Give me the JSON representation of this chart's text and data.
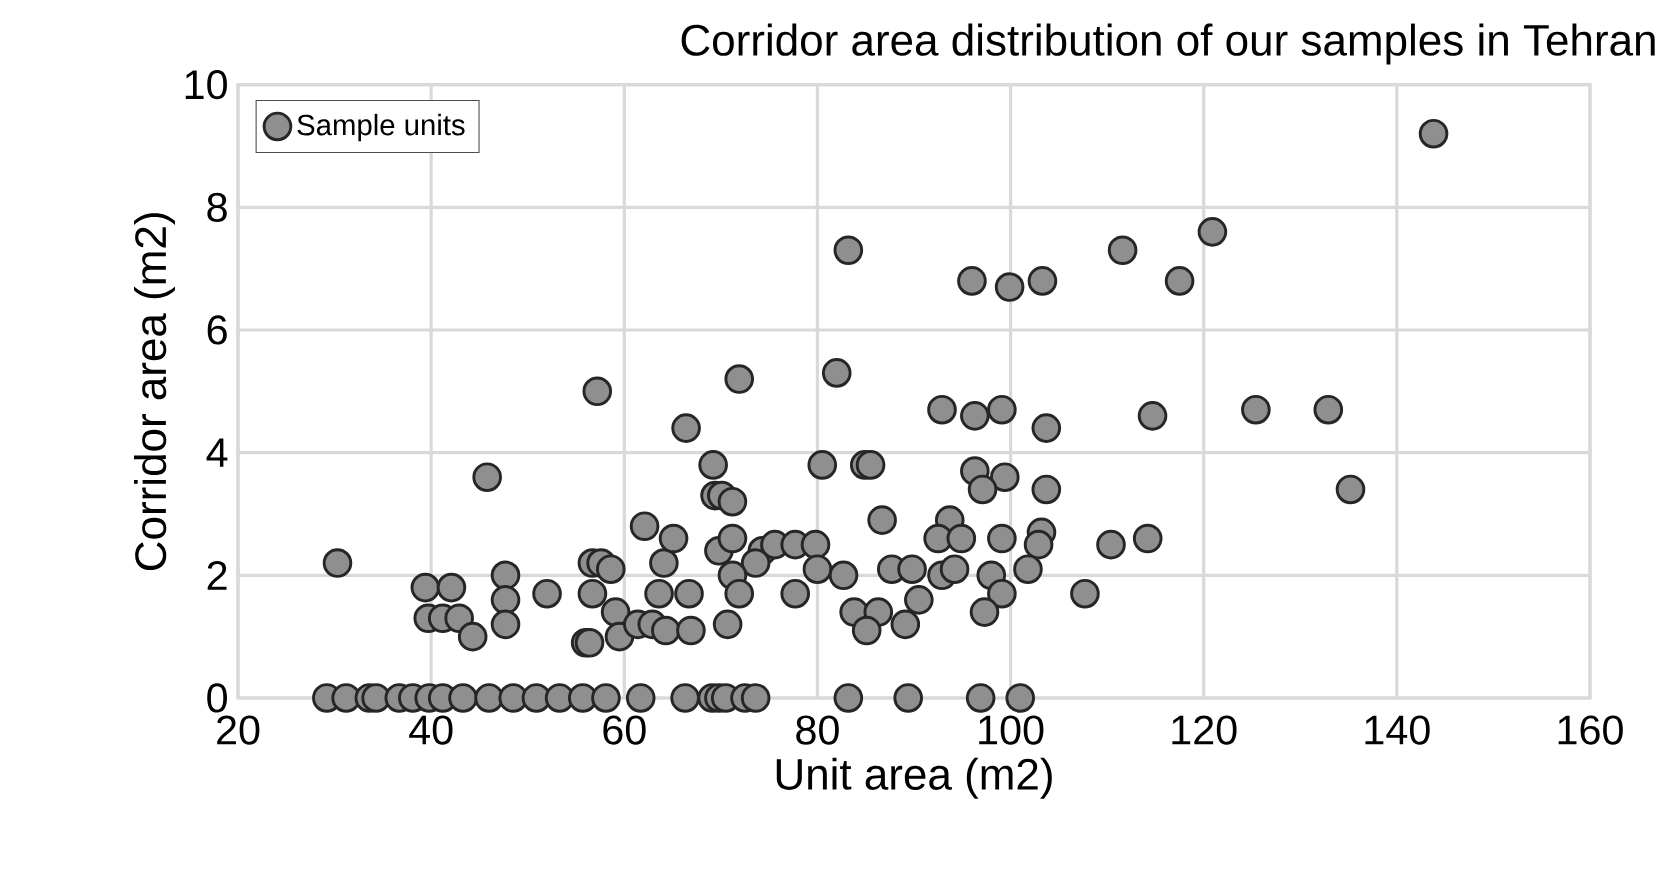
{
  "chart_data": {
    "type": "scatter",
    "title": "Corridor area distribution of our samples in Tehran",
    "xlabel": "Unit area (m2)",
    "ylabel": "Corridor area (m2)",
    "xlim": [
      20,
      160
    ],
    "xticks": [
      20,
      40,
      60,
      80,
      100,
      120,
      140,
      160
    ],
    "ylim": [
      0,
      10
    ],
    "yticks": [
      0,
      2,
      4,
      6,
      8,
      10
    ],
    "grid": true,
    "legend": "top left",
    "series": [
      {
        "name": "Sample units",
        "color": "#8f8f8f",
        "x": [
          29.2,
          31.2,
          33.6,
          34.3,
          36.7,
          38.1,
          39.8,
          41.2,
          43.3,
          46.0,
          48.5,
          50.9,
          53.3,
          55.7,
          58.1,
          61.7,
          66.3,
          69.1,
          69.8,
          70.5,
          72.5,
          73.6,
          83.2,
          89.4,
          96.9,
          101.0,
          57.2,
          45.8,
          30.3,
          39.4,
          42.1,
          39.7,
          41.2,
          42.9,
          44.3,
          47.7,
          47.7,
          47.7,
          52.0,
          56.7,
          57.6,
          58.6,
          56.7,
          56.0,
          56.4,
          59.1,
          59.5,
          61.4,
          62.1,
          64.1,
          63.6,
          62.9,
          64.3,
          66.4,
          71.9,
          82.0,
          92.9,
          96.3,
          99.1,
          103.7,
          69.2,
          80.5,
          84.9,
          85.5,
          96.3,
          99.4,
          97.1,
          103.7,
          69.4,
          70.1,
          71.2,
          86.7,
          93.7,
          92.5,
          94.9,
          99.1,
          103.2,
          102.9,
          110.4,
          65.1,
          69.8,
          71.2,
          74.3,
          75.6,
          77.7,
          79.8,
          73.6,
          80.0,
          71.2,
          71.9,
          66.7,
          77.7,
          82.7,
          87.7,
          89.8,
          92.9,
          94.2,
          98.0,
          101.8,
          99.1,
          107.7,
          90.5,
          83.8,
          86.3,
          85.1,
          89.1,
          97.3,
          70.7,
          66.9,
          143.8,
          120.9,
          111.6,
          117.5,
          114.7,
          125.4,
          132.9,
          135.2,
          114.2,
          83.2,
          96.0,
          99.9,
          103.3
        ],
        "values": [
          0,
          0,
          0,
          0,
          0,
          0,
          0,
          0,
          0,
          0,
          0,
          0,
          0,
          0,
          0,
          0,
          0,
          0,
          0,
          0,
          0,
          0,
          0,
          0,
          0,
          0,
          5.0,
          3.6,
          2.2,
          1.8,
          1.8,
          1.3,
          1.3,
          1.3,
          1.0,
          2.0,
          1.6,
          1.2,
          1.7,
          2.2,
          2.2,
          2.1,
          1.7,
          0.9,
          0.9,
          1.4,
          1.0,
          1.2,
          2.8,
          2.2,
          1.7,
          1.2,
          1.1,
          4.4,
          5.2,
          5.3,
          4.7,
          4.6,
          4.7,
          4.4,
          3.8,
          3.8,
          3.8,
          3.8,
          3.7,
          3.6,
          3.4,
          3.4,
          3.3,
          3.3,
          3.2,
          2.9,
          2.9,
          2.6,
          2.6,
          2.6,
          2.7,
          2.5,
          2.5,
          2.6,
          2.4,
          2.6,
          2.4,
          2.5,
          2.5,
          2.5,
          2.2,
          2.1,
          2.0,
          1.7,
          1.7,
          1.7,
          2.0,
          2.1,
          2.1,
          2.0,
          2.1,
          2.0,
          2.1,
          1.7,
          1.7,
          1.6,
          1.4,
          1.4,
          1.1,
          1.2,
          1.4,
          1.2,
          1.1,
          9.2,
          7.6,
          7.3,
          6.8,
          4.6,
          4.7,
          4.7,
          3.4,
          2.6,
          7.3,
          6.8,
          6.7,
          6.8
        ]
      }
    ]
  }
}
